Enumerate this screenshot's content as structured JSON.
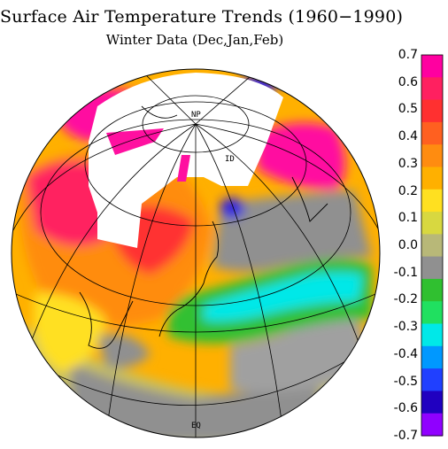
{
  "title": "Surface Air Temperature Trends (1960−1990)",
  "subtitle": "Winter Data (Dec,Jan,Feb)",
  "map_labels": {
    "north_pole": "NP",
    "dateline": "ID",
    "equator": "EQ"
  },
  "colorbar": {
    "labels": [
      "0.7",
      "0.6",
      "0.5",
      "0.4",
      "0.3",
      "0.2",
      "0.1",
      "0.0",
      "-0.1",
      "-0.2",
      "-0.3",
      "-0.4",
      "-0.5",
      "-0.6",
      "-0.7"
    ],
    "colors_top_to_bottom": [
      "#ff00a0",
      "#ff2060",
      "#ff3030",
      "#ff6020",
      "#ff8c10",
      "#ffb000",
      "#ffe020",
      "#d8d840",
      "#b8b878",
      "#909090",
      "#30c030",
      "#20e060",
      "#00e8e8",
      "#0098ff",
      "#2040ff",
      "#2000c0",
      "#9000ff"
    ]
  },
  "map_colors": {
    "strong_warming": "#ff10a0",
    "warming": "#ff5030",
    "moderate_warming": "#ff9a10",
    "slight_warming": "#ffe020",
    "neutral": "#909090",
    "cooling": "#30c030",
    "strong_cooling": "#00e8e8",
    "extreme_cooling": "#3020e0",
    "no_data": "#ffffff"
  }
}
